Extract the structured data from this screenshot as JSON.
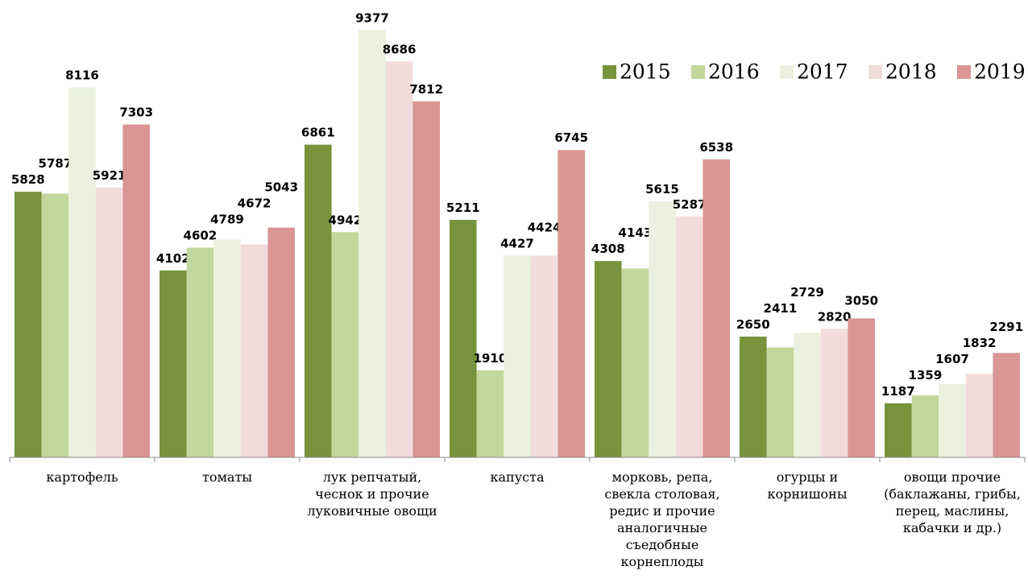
{
  "chart_data": {
    "type": "bar",
    "categories": [
      "картофель",
      "томаты",
      "лук репчатый, чеснок и прочие луковичные овощи",
      "капуста",
      "морковь, репа, свекла столовая, редис и прочие аналогичные съедобные корнеплоды",
      "огурцы и корнишоны",
      "овощи прочие (баклажаны, грибы, перец, маслины, кабачки и др.)"
    ],
    "series": [
      {
        "name": "2015",
        "color": "#77933c",
        "values": [
          5828,
          4102,
          6861,
          5211,
          4308,
          2650,
          1187
        ]
      },
      {
        "name": "2016",
        "color": "#c3d69b",
        "values": [
          5787,
          4602,
          4942,
          1910,
          4143,
          2411,
          1359
        ]
      },
      {
        "name": "2017",
        "color": "#ebf1de",
        "values": [
          8116,
          4789,
          9377,
          4427,
          5615,
          2729,
          1607
        ]
      },
      {
        "name": "2018",
        "color": "#f2dcdb",
        "values": [
          5921,
          4672,
          8686,
          4424,
          5287,
          2820,
          1832
        ]
      },
      {
        "name": "2019",
        "color": "#d99694",
        "values": [
          7303,
          5043,
          7812,
          6745,
          6538,
          3050,
          2291
        ]
      }
    ],
    "ylim": [
      0,
      10000
    ],
    "legend": "top-right"
  }
}
